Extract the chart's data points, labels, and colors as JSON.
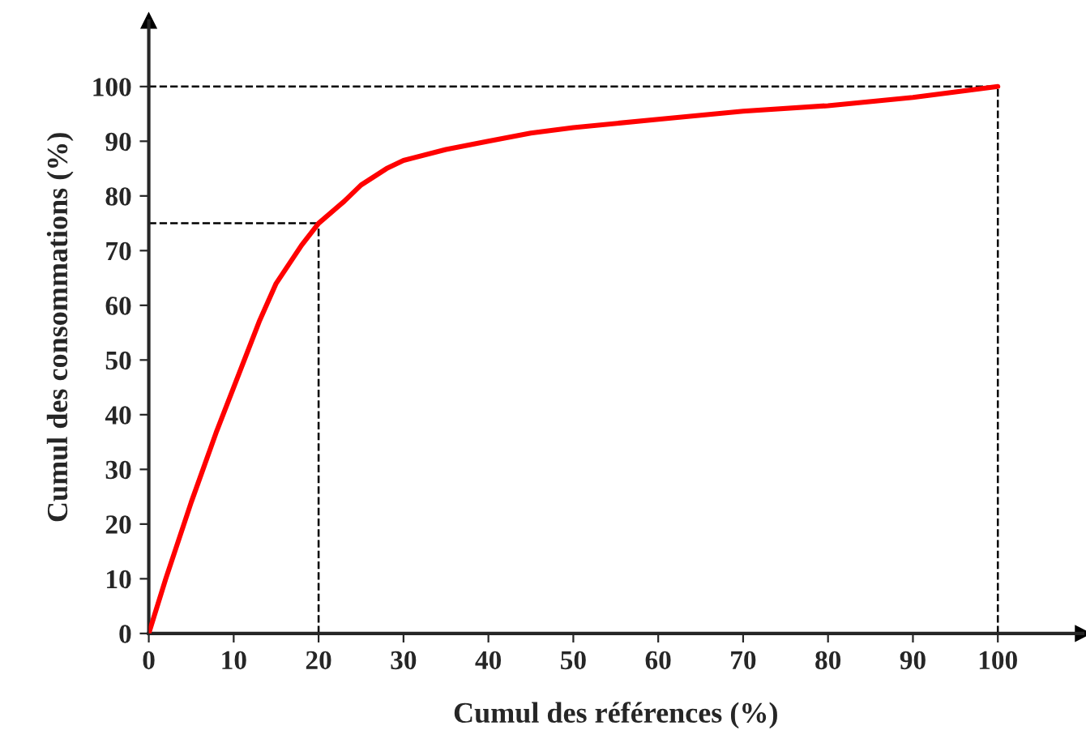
{
  "chart_data": {
    "type": "line",
    "xlabel": "Cumul des références (%)",
    "ylabel": "Cumul des consommations (%)",
    "x": [
      0,
      2,
      5,
      8,
      10,
      13,
      15,
      18,
      20,
      23,
      25,
      28,
      30,
      35,
      40,
      45,
      50,
      60,
      70,
      80,
      90,
      100
    ],
    "series": [
      {
        "color": "#ff0000",
        "values": [
          0,
          10,
          24,
          37,
          45,
          57,
          64,
          71,
          75,
          79,
          82,
          85,
          86.5,
          88.5,
          90,
          91.5,
          92.5,
          94,
          95.5,
          96.5,
          98,
          100
        ]
      }
    ],
    "xlim": [
      0,
      110
    ],
    "ylim": [
      0,
      112
    ],
    "xticks": [
      0,
      10,
      20,
      30,
      40,
      50,
      60,
      70,
      80,
      90,
      100
    ],
    "yticks": [
      0,
      10,
      20,
      30,
      40,
      50,
      60,
      70,
      80,
      90,
      100
    ],
    "ref_lines": [
      {
        "axis": "y",
        "value": 75,
        "color": "#000000",
        "line_style": "dashed"
      },
      {
        "axis": "x",
        "value": 20,
        "color": "#000000",
        "line_style": "dashed"
      },
      {
        "axis": "y",
        "value": 100,
        "color": "#000000",
        "line_style": "dashed"
      },
      {
        "axis": "x",
        "value": 100,
        "color": "#000000",
        "line_style": "dashed"
      }
    ],
    "grid": false,
    "legend": false,
    "marker": "none",
    "line_style": "solid"
  }
}
